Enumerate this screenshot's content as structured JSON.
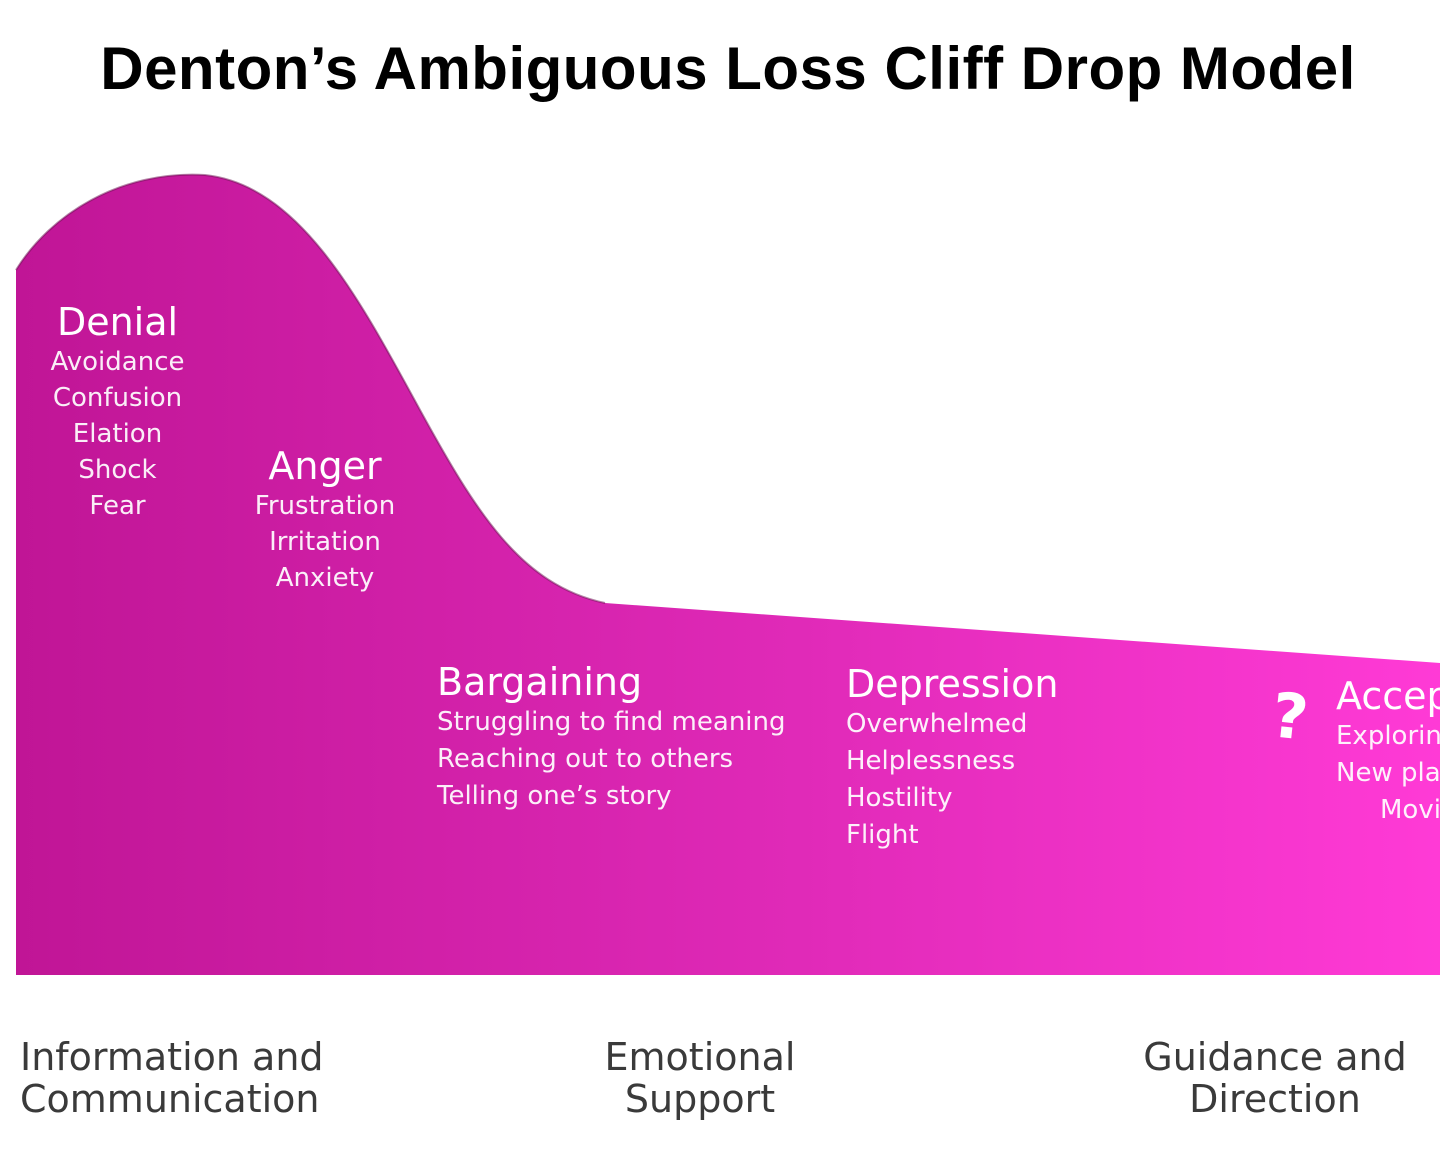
{
  "title": "Denton’s Ambiguous Loss Cliff Drop Model",
  "colors": {
    "curve_start": "#c01596",
    "curve_end": "#ff3ad6",
    "text_on_curve": "#ffffff",
    "support_text": "#3a3a3a"
  },
  "stages": [
    {
      "name": "Denial",
      "items": [
        "Avoidance",
        "Confusion",
        "Elation",
        "Shock",
        "Fear"
      ]
    },
    {
      "name": "Anger",
      "items": [
        "Frustration",
        "Irritation",
        "Anxiety"
      ]
    },
    {
      "name": "Bargaining",
      "items": [
        "Struggling to find meaning",
        "Reaching out to others",
        "Telling one’s story"
      ]
    },
    {
      "name": "Depression",
      "items": [
        "Overwhelmed",
        "Helplessness",
        "Hostility",
        "Flight"
      ]
    },
    {
      "name": "Accept",
      "items": [
        "Exploring",
        "New plan",
        "Movin"
      ]
    }
  ],
  "question_mark": "?",
  "support_labels": [
    {
      "line1": "Information and",
      "line2": "Communication"
    },
    {
      "line1": "Emotional",
      "line2": "Support"
    },
    {
      "line1": "Guidance and",
      "line2": "Direction"
    }
  ]
}
